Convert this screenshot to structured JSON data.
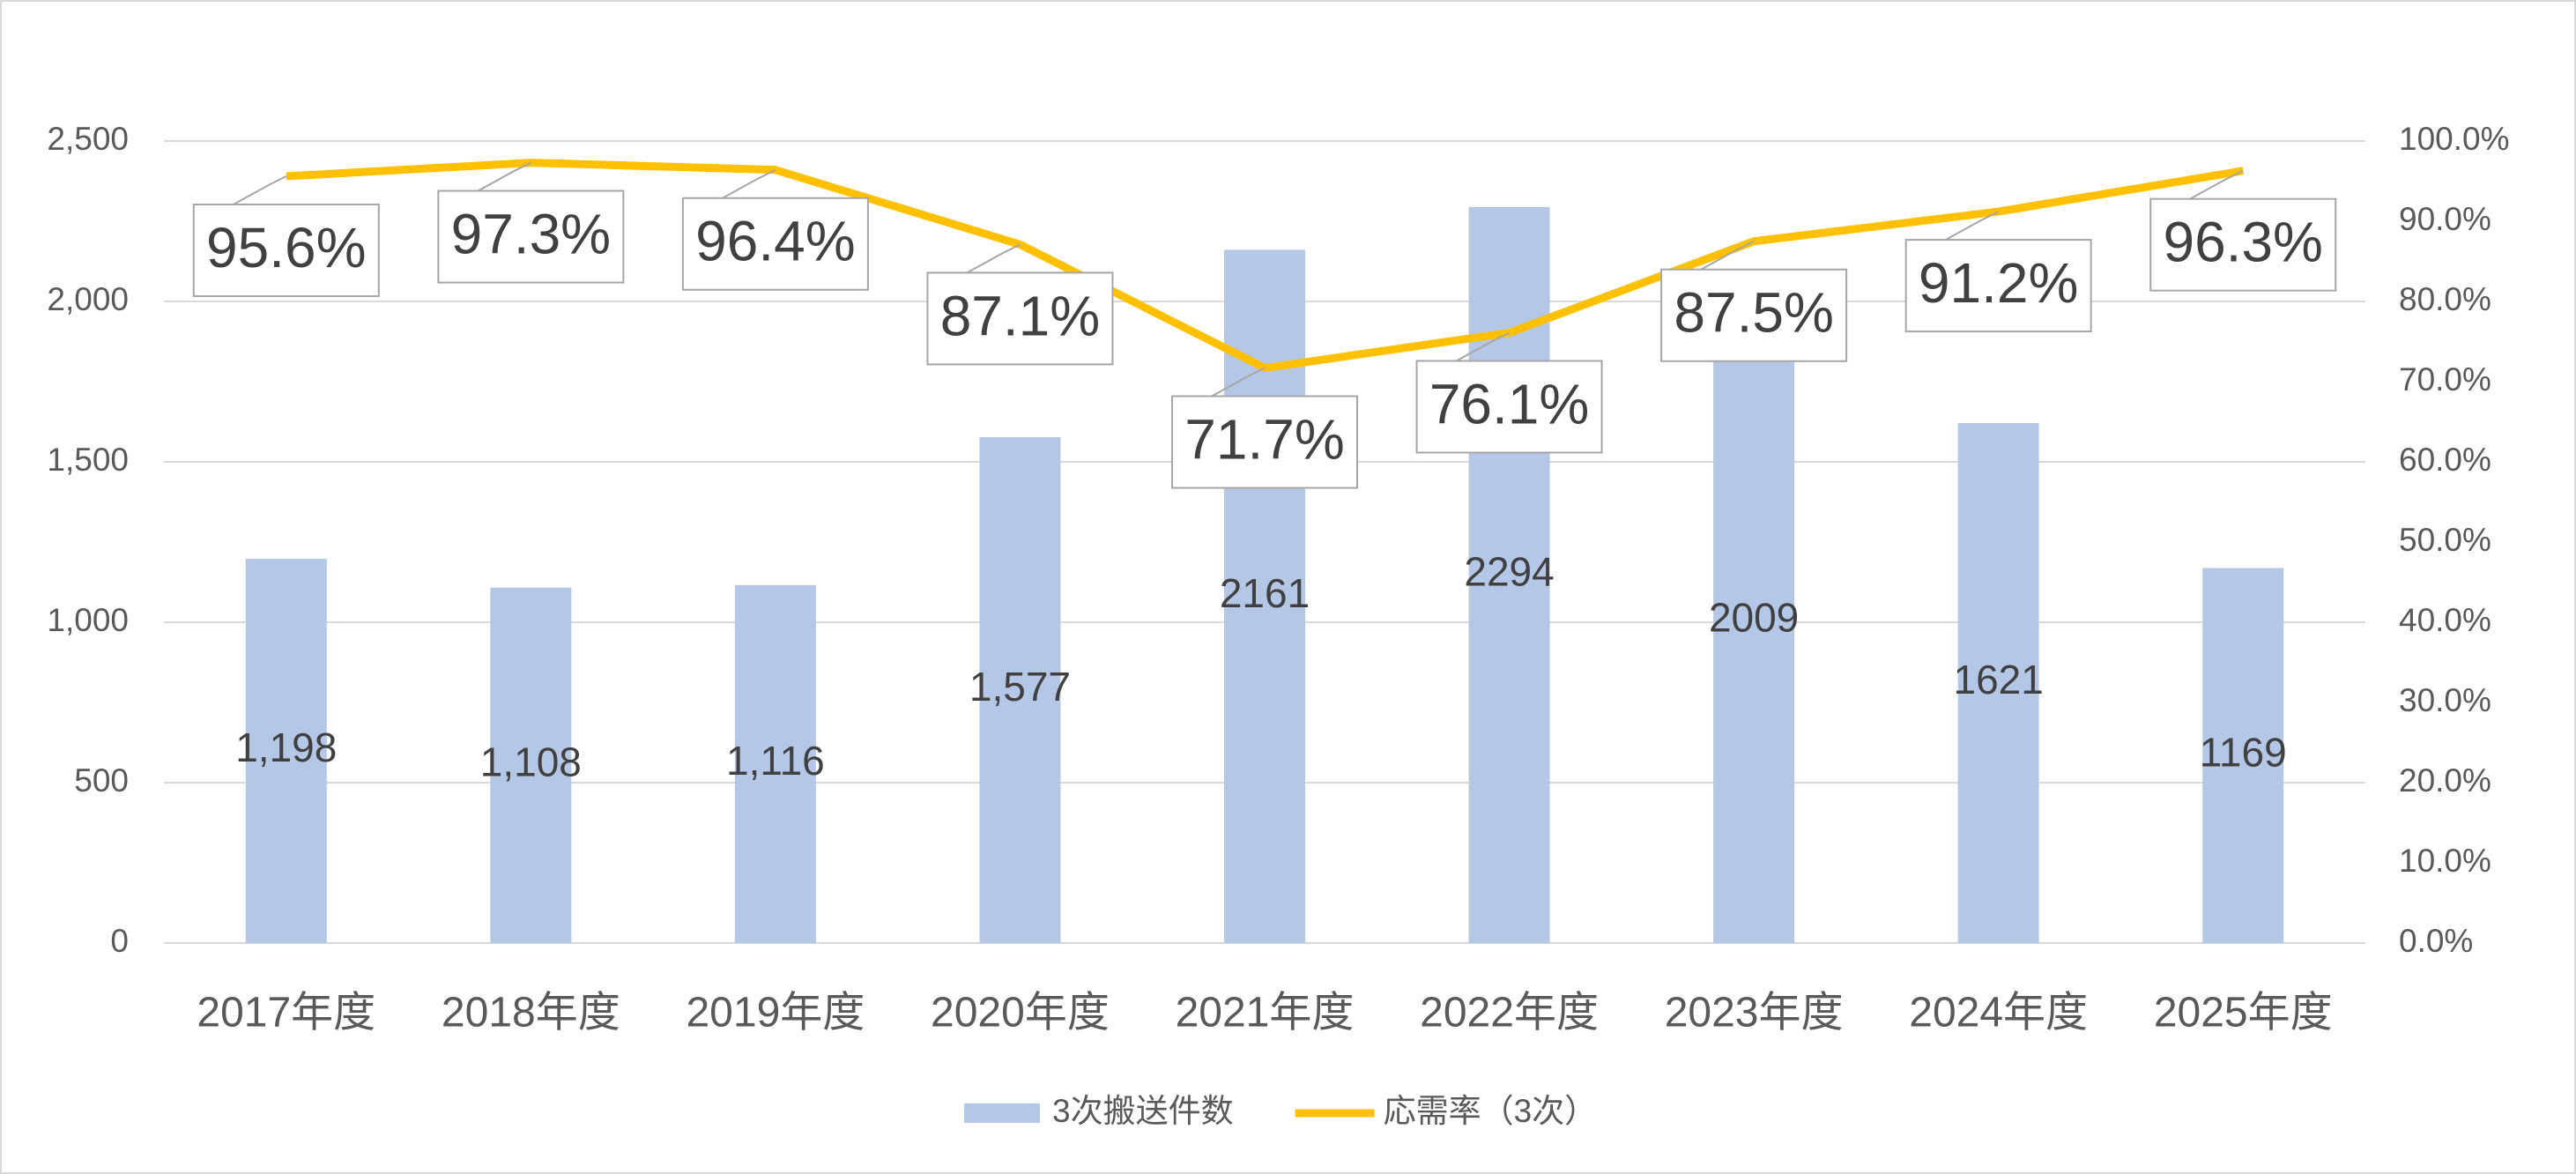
{
  "chart_data": {
    "type": "combo",
    "categories": [
      "2017年度",
      "2018年度",
      "2019年度",
      "2020年度",
      "2021年度",
      "2022年度",
      "2023年度",
      "2024年度",
      "2025年度"
    ],
    "series": [
      {
        "name": "3次搬送件数",
        "type": "bar",
        "color": "#b4c7e7",
        "values": [
          1198,
          1108,
          1116,
          1577,
          2161,
          2294,
          2009,
          1621,
          1169
        ],
        "value_labels": [
          "1,198",
          "1,108",
          "1,116",
          "1,577",
          "2161",
          "2294",
          "2009",
          "1621",
          "1169"
        ]
      },
      {
        "name": "応需率（3次）",
        "type": "line",
        "axis": "y2",
        "color": "#ffc000",
        "values": [
          95.6,
          97.3,
          96.4,
          87.1,
          71.7,
          76.1,
          87.5,
          91.2,
          96.3
        ],
        "value_labels": [
          "95.6%",
          "97.3%",
          "96.4%",
          "87.1%",
          "71.7%",
          "76.1%",
          "87.5%",
          "91.2%",
          "96.3%"
        ]
      }
    ],
    "ylim": [
      0,
      2500
    ],
    "yticks": [
      0,
      500,
      {
        "value": 1000,
        "label": "1,000"
      },
      {
        "value": 1500,
        "label": "1,500"
      },
      {
        "value": 2000,
        "label": "2,000"
      },
      {
        "value": 2500,
        "label": "2,500"
      }
    ],
    "y2lim": [
      0,
      100
    ],
    "y2ticks": [
      {
        "value": 0,
        "label": "0.0%"
      },
      {
        "value": 10,
        "label": "10.0%"
      },
      {
        "value": 20,
        "label": "20.0%"
      },
      {
        "value": 30,
        "label": "30.0%"
      },
      {
        "value": 40,
        "label": "40.0%"
      },
      {
        "value": 50,
        "label": "50.0%"
      },
      {
        "value": 60,
        "label": "60.0%"
      },
      {
        "value": 70,
        "label": "70.0%"
      },
      {
        "value": 80,
        "label": "80.0%"
      },
      {
        "value": 90,
        "label": "90.0%"
      },
      {
        "value": 100,
        "label": "100.0%"
      }
    ],
    "grid": true,
    "legend": "bottom"
  }
}
